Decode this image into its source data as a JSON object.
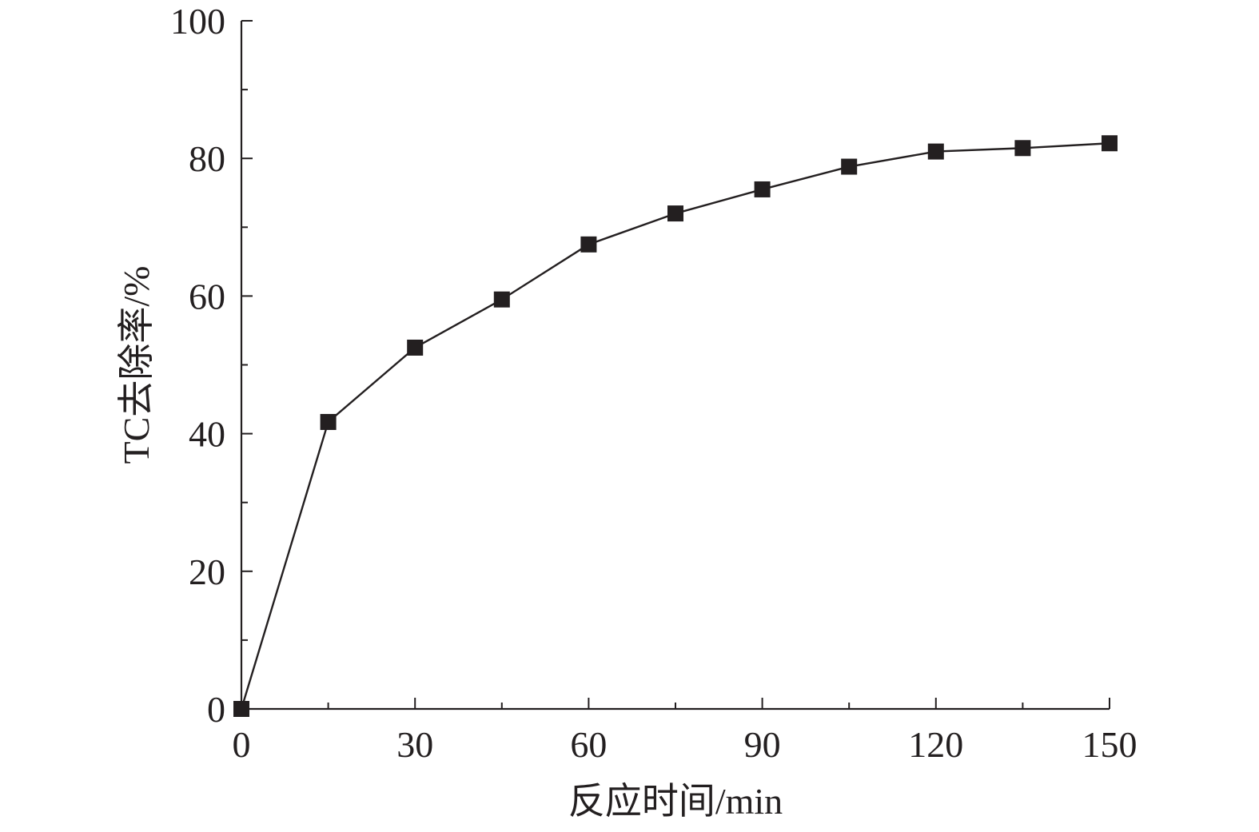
{
  "colors": {
    "axis": "#231f20",
    "series": "#231f20",
    "background": "#ffffff"
  },
  "chart_data": {
    "type": "line",
    "title": "",
    "xlabel": "反应时间/min",
    "ylabel": "TC去除率/%",
    "xlim": [
      0,
      150
    ],
    "ylim": [
      0,
      100
    ],
    "x_ticks": [
      0,
      30,
      60,
      90,
      120,
      150
    ],
    "x_tick_labels": [
      "0",
      "30",
      "60",
      "90",
      "120",
      "150"
    ],
    "y_ticks": [
      0,
      20,
      40,
      60,
      80,
      100
    ],
    "y_tick_labels": [
      "0",
      "20",
      "40",
      "60",
      "80",
      "100"
    ],
    "x_minor_ticks": [
      15,
      45,
      75,
      105,
      135
    ],
    "y_minor_ticks": [
      10,
      30,
      50,
      70,
      90
    ],
    "grid": false,
    "legend": "none",
    "marker": "square",
    "series": [
      {
        "x": [
          0,
          15,
          30,
          45,
          60,
          75,
          90,
          105,
          120,
          135,
          150
        ],
        "values": [
          0,
          41.7,
          52.5,
          59.5,
          67.5,
          72.0,
          75.5,
          78.8,
          81.0,
          81.5,
          82.2
        ]
      }
    ]
  }
}
